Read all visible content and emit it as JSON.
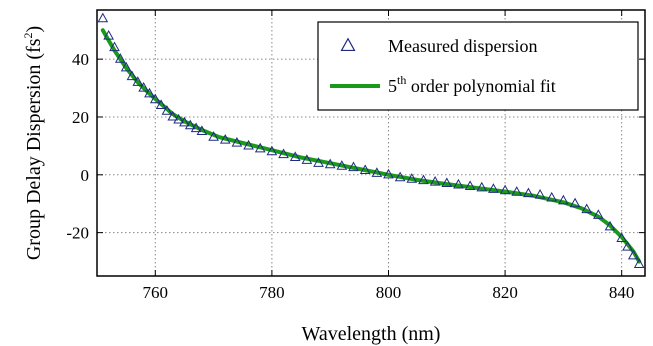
{
  "chart_data": {
    "type": "scatter",
    "xlabel": "Wavelength (nm)",
    "ylabel": {
      "main": "Group Delay Dispersion (fs",
      "exponent": "2",
      "close": ")"
    },
    "xlim": [
      750,
      844
    ],
    "ylim": [
      -35,
      57
    ],
    "x_ticks": [
      760,
      780,
      800,
      820,
      840
    ],
    "y_ticks": [
      -20,
      0,
      20,
      40
    ],
    "grid": true,
    "grid_style": "dotted",
    "legend_position": "top-right",
    "legend": {
      "measured_label": "Measured dispersion",
      "fit_prefix": "5",
      "fit_superscript": "th",
      "fit_suffix": " order polynomial fit"
    },
    "colors": {
      "measured": "#1f2a80",
      "fit": "#1a9a1a",
      "axis": "#000000",
      "grid": "#888888"
    },
    "series": [
      {
        "name": "Measured dispersion",
        "marker": "triangle",
        "x": [
          751,
          752,
          753,
          754,
          755,
          756,
          757,
          758,
          759,
          760,
          761,
          762,
          763,
          764,
          765,
          766,
          767,
          768,
          770,
          772,
          774,
          776,
          778,
          780,
          782,
          784,
          786,
          788,
          790,
          792,
          794,
          796,
          798,
          800,
          802,
          804,
          806,
          808,
          810,
          812,
          814,
          816,
          818,
          820,
          822,
          824,
          826,
          828,
          830,
          832,
          834,
          836,
          838,
          840,
          841,
          842,
          843
        ],
        "y": [
          54,
          48,
          44,
          40,
          37,
          34,
          32,
          30,
          28,
          26,
          24,
          22,
          20,
          19,
          18,
          17,
          16,
          15,
          13,
          12,
          11,
          10,
          9,
          8,
          7,
          6,
          5,
          4,
          3.5,
          3,
          2.5,
          1.5,
          0.5,
          0,
          -1,
          -1.5,
          -2,
          -2.5,
          -3,
          -3.5,
          -4,
          -4.5,
          -5,
          -5.5,
          -6,
          -6.5,
          -7,
          -8,
          -9,
          -10,
          -12,
          -14,
          -18,
          -22,
          -25,
          -28,
          -31
        ]
      },
      {
        "name": "5th order polynomial fit",
        "marker": "line",
        "x": [
          751,
          753,
          755,
          757,
          759,
          761,
          763,
          765,
          768,
          771,
          775,
          780,
          785,
          790,
          795,
          800,
          805,
          810,
          815,
          820,
          825,
          830,
          833,
          836,
          838,
          840,
          842,
          843
        ],
        "y": [
          50,
          43,
          37,
          32,
          28,
          24.5,
          21,
          18.5,
          15.5,
          13,
          11,
          8.5,
          6,
          4,
          2,
          0,
          -1.8,
          -3.2,
          -4.5,
          -5.8,
          -7.3,
          -9.5,
          -11.5,
          -14.5,
          -17.5,
          -21.5,
          -26.5,
          -30
        ]
      }
    ]
  }
}
